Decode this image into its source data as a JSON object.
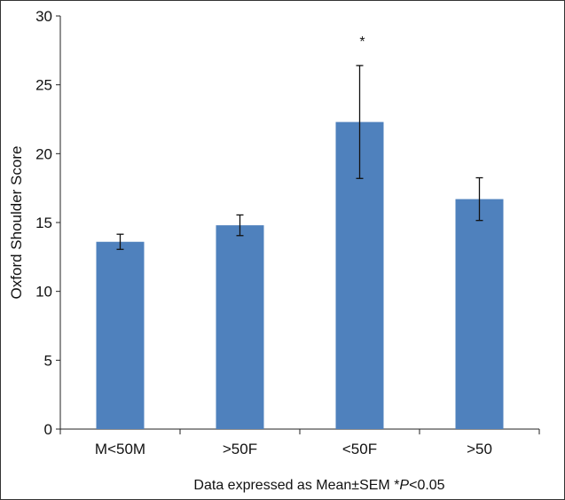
{
  "chart_data": {
    "type": "bar",
    "title": "",
    "xlabel": "Data expressed as Mean±SEM *P<0.05",
    "xlabel_parts": [
      "Data expressed as Mean±SEM *",
      "P",
      "<0.05"
    ],
    "ylabel": "Oxford Shoulder Score",
    "ylim": [
      0,
      30
    ],
    "yticks": [
      0,
      5,
      10,
      15,
      20,
      25,
      30
    ],
    "categories": [
      "M<50M",
      ">50F",
      "<50F",
      ">50"
    ],
    "values": [
      13.6,
      14.8,
      22.3,
      16.7
    ],
    "errors": [
      0.55,
      0.75,
      4.1,
      1.55
    ],
    "annotations": [
      "",
      "",
      "*",
      ""
    ],
    "bar_color": "#4f81bd",
    "grid": false
  }
}
